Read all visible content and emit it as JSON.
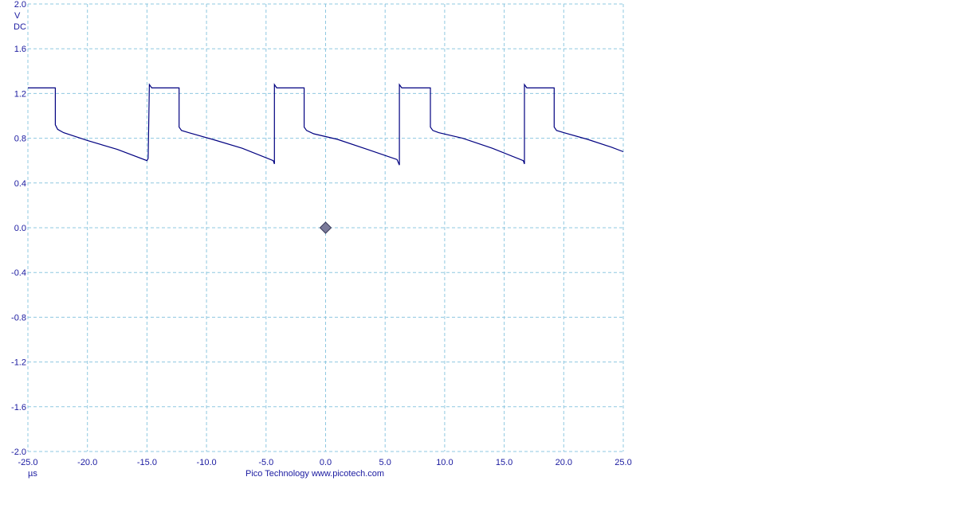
{
  "chart_data": {
    "type": "line",
    "title": "",
    "xlabel": "",
    "ylabel": "",
    "x_unit": "µs",
    "y_unit_line1": "V",
    "y_unit_line2": "DC",
    "footer": "Pico Technology  www.picotech.com",
    "xlim": [
      -25.0,
      25.0
    ],
    "ylim": [
      -2.0,
      2.0
    ],
    "x_ticks": [
      -25.0,
      -20.0,
      -15.0,
      -10.0,
      -5.0,
      0.0,
      5.0,
      10.0,
      15.0,
      20.0,
      25.0
    ],
    "x_tick_labels": [
      "-25.0",
      "-20.0",
      "-15.0",
      "-10.0",
      "-5.0",
      "0.0",
      "5.0",
      "10.0",
      "15.0",
      "20.0",
      "25.0"
    ],
    "y_ticks": [
      2.0,
      1.6,
      1.2,
      0.8,
      0.4,
      0.0,
      -0.4,
      -0.8,
      -1.2,
      -1.6,
      -2.0
    ],
    "y_tick_labels": [
      "2.0",
      "1.6",
      "1.2",
      "0.8",
      "0.4",
      "0.0",
      "-0.4",
      "-0.8",
      "-1.2",
      "-1.6",
      "-2.0"
    ],
    "grid": true,
    "trigger_marker": {
      "x": 0.0,
      "y": 0.0
    },
    "colors": {
      "trace": "#000080",
      "grid": "#8fc8e0",
      "labels": "#1a1aa0",
      "marker_fill": "#7a7a9a"
    },
    "series": [
      {
        "points": [
          [
            -25.0,
            1.25
          ],
          [
            -22.7,
            1.25
          ],
          [
            -22.7,
            0.92
          ],
          [
            -22.5,
            0.88
          ],
          [
            -22.0,
            0.85
          ],
          [
            -20.0,
            0.78
          ],
          [
            -17.5,
            0.7
          ],
          [
            -15.0,
            0.6
          ],
          [
            -14.9,
            0.62
          ],
          [
            -14.8,
            1.28
          ],
          [
            -14.6,
            1.25
          ],
          [
            -12.3,
            1.25
          ],
          [
            -12.3,
            0.9
          ],
          [
            -12.1,
            0.87
          ],
          [
            -11.5,
            0.85
          ],
          [
            -9.5,
            0.79
          ],
          [
            -7.0,
            0.71
          ],
          [
            -4.4,
            0.6
          ],
          [
            -4.3,
            0.57
          ],
          [
            -4.3,
            1.28
          ],
          [
            -4.1,
            1.25
          ],
          [
            -1.8,
            1.25
          ],
          [
            -1.8,
            0.9
          ],
          [
            -1.6,
            0.87
          ],
          [
            -1.0,
            0.84
          ],
          [
            1.0,
            0.79
          ],
          [
            3.5,
            0.7
          ],
          [
            6.0,
            0.61
          ],
          [
            6.2,
            0.56
          ],
          [
            6.2,
            1.28
          ],
          [
            6.4,
            1.25
          ],
          [
            8.8,
            1.25
          ],
          [
            8.8,
            0.9
          ],
          [
            9.0,
            0.87
          ],
          [
            9.5,
            0.85
          ],
          [
            11.5,
            0.8
          ],
          [
            14.0,
            0.71
          ],
          [
            16.6,
            0.6
          ],
          [
            16.7,
            0.57
          ],
          [
            16.7,
            1.28
          ],
          [
            16.9,
            1.25
          ],
          [
            19.2,
            1.25
          ],
          [
            19.2,
            0.9
          ],
          [
            19.4,
            0.87
          ],
          [
            20.0,
            0.85
          ],
          [
            22.0,
            0.79
          ],
          [
            24.0,
            0.72
          ],
          [
            25.0,
            0.68
          ]
        ]
      }
    ]
  }
}
